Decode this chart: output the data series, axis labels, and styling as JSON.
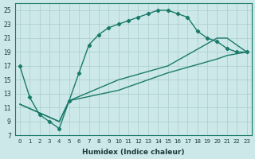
{
  "xlabel": "Humidex (Indice chaleur)",
  "ylabel": "",
  "xlim": [
    -0.5,
    23.5
  ],
  "ylim": [
    7,
    26
  ],
  "yticks": [
    7,
    9,
    11,
    13,
    15,
    17,
    19,
    21,
    23,
    25
  ],
  "xticks": [
    0,
    1,
    2,
    3,
    4,
    5,
    6,
    7,
    8,
    9,
    10,
    11,
    12,
    13,
    14,
    15,
    16,
    17,
    18,
    19,
    20,
    21,
    22,
    23
  ],
  "bg_color": "#cce8e8",
  "grid_color": "#aacccc",
  "line_color": "#1a7a6a",
  "line1": {
    "x": [
      0,
      1,
      2,
      3,
      4,
      5,
      6,
      7,
      8,
      9,
      10,
      11,
      12,
      13,
      14,
      15,
      16,
      17,
      18,
      19,
      20,
      21,
      22,
      23
    ],
    "y": [
      17,
      12.5,
      10,
      9,
      8,
      12,
      16,
      20,
      21.5,
      22.5,
      23,
      23.5,
      24,
      24.5,
      25,
      25,
      24.5,
      24,
      22,
      21,
      20.5,
      19.5,
      19,
      19
    ]
  },
  "line2": {
    "x": [
      0,
      4,
      5,
      10,
      15,
      20,
      21,
      23
    ],
    "y": [
      11.5,
      9,
      12,
      15,
      17,
      21,
      21,
      19
    ]
  },
  "line3": {
    "x": [
      0,
      4,
      5,
      10,
      15,
      20,
      21,
      23
    ],
    "y": [
      11.5,
      9,
      12,
      13.5,
      16,
      18,
      18.5,
      19
    ]
  }
}
